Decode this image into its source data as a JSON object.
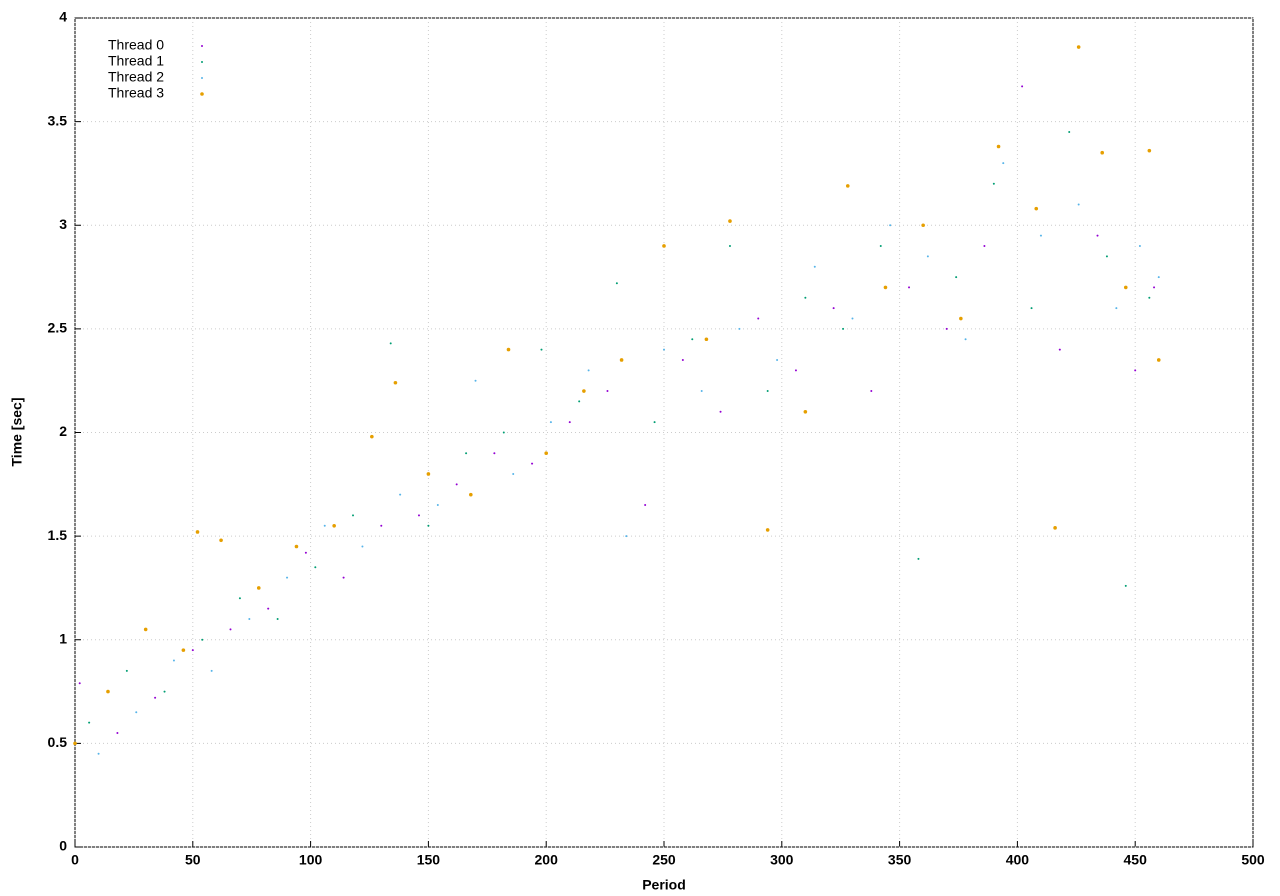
{
  "chart_data": {
    "type": "scatter",
    "xlabel": "Period",
    "ylabel": "Time [sec]",
    "xlim": [
      0,
      500
    ],
    "xticks": [
      0,
      50,
      100,
      150,
      200,
      250,
      300,
      350,
      400,
      450,
      500
    ],
    "ylim": [
      0,
      4
    ],
    "yticks": [
      0,
      0.5,
      1,
      1.5,
      2,
      2.5,
      3,
      3.5,
      4
    ],
    "grid": true,
    "legend": "upper left",
    "series": [
      {
        "name": "Thread 0",
        "color": "#9400d3",
        "x": [
          2,
          18,
          34,
          50,
          66,
          82,
          98,
          114,
          130,
          146,
          162,
          178,
          194,
          210,
          226,
          242,
          258,
          274,
          290,
          306,
          322,
          338,
          354,
          370,
          386,
          402,
          418,
          434,
          450,
          458
        ],
        "values": [
          0.79,
          0.55,
          0.72,
          0.95,
          1.05,
          1.15,
          1.42,
          1.3,
          1.55,
          1.6,
          1.75,
          1.9,
          1.85,
          2.05,
          2.2,
          1.65,
          2.35,
          2.1,
          2.55,
          2.3,
          2.6,
          2.2,
          2.7,
          2.5,
          2.9,
          3.67,
          2.4,
          2.95,
          2.3,
          2.7
        ]
      },
      {
        "name": "Thread 1",
        "color": "#009e73",
        "x": [
          6,
          22,
          38,
          54,
          70,
          86,
          102,
          118,
          134,
          150,
          166,
          182,
          198,
          214,
          230,
          246,
          262,
          278,
          294,
          310,
          326,
          342,
          358,
          374,
          390,
          406,
          422,
          438,
          446,
          456
        ],
        "values": [
          0.6,
          0.85,
          0.75,
          1.0,
          1.2,
          1.1,
          1.35,
          1.6,
          2.43,
          1.55,
          1.9,
          2.0,
          2.4,
          2.15,
          2.72,
          2.05,
          2.45,
          2.9,
          2.2,
          2.65,
          2.5,
          2.9,
          1.39,
          2.75,
          3.2,
          2.6,
          3.45,
          2.85,
          1.26,
          2.65
        ]
      },
      {
        "name": "Thread 2",
        "color": "#56b4e9",
        "x": [
          10,
          26,
          42,
          58,
          74,
          90,
          106,
          122,
          138,
          154,
          170,
          186,
          202,
          218,
          234,
          250,
          266,
          282,
          298,
          314,
          330,
          346,
          362,
          378,
          394,
          410,
          426,
          442,
          452,
          460
        ],
        "values": [
          0.45,
          0.65,
          0.9,
          0.85,
          1.1,
          1.3,
          1.55,
          1.45,
          1.7,
          1.65,
          2.25,
          1.8,
          2.05,
          2.3,
          1.5,
          2.4,
          2.2,
          2.5,
          2.35,
          2.8,
          2.55,
          3.0,
          2.85,
          2.45,
          3.3,
          2.95,
          3.1,
          2.6,
          2.9,
          2.75
        ]
      },
      {
        "name": "Thread 3",
        "color": "#e69f00",
        "x": [
          0,
          14,
          30,
          46,
          52,
          62,
          78,
          94,
          110,
          126,
          136,
          150,
          168,
          184,
          200,
          216,
          232,
          250,
          268,
          278,
          294,
          310,
          328,
          344,
          360,
          376,
          392,
          408,
          416,
          426,
          436,
          446,
          456,
          460
        ],
        "values": [
          0.5,
          0.75,
          1.05,
          0.95,
          1.52,
          1.48,
          1.25,
          1.45,
          1.55,
          1.98,
          2.24,
          1.8,
          1.7,
          2.4,
          1.9,
          2.2,
          2.35,
          2.9,
          2.45,
          3.02,
          1.53,
          2.1,
          3.19,
          2.7,
          3.0,
          2.55,
          3.38,
          3.08,
          1.54,
          3.86,
          3.35,
          2.7,
          3.36,
          2.35
        ]
      }
    ]
  }
}
